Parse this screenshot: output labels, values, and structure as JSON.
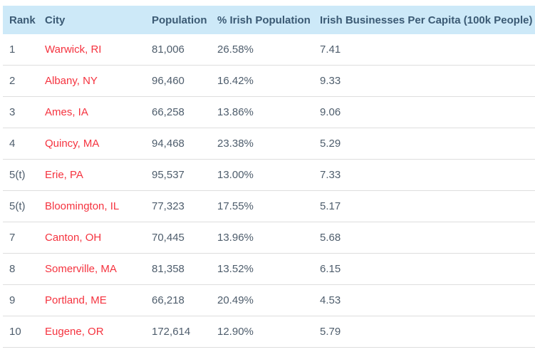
{
  "colors": {
    "header_bg": "#cde9f8",
    "header_text": "#3b5a74",
    "body_text": "#4e5d6c",
    "city_link": "#f5333f",
    "row_border": "#dedede"
  },
  "table": {
    "columns": [
      {
        "key": "rank",
        "label": "Rank"
      },
      {
        "key": "city",
        "label": "City"
      },
      {
        "key": "population",
        "label": "Population"
      },
      {
        "key": "pct_irish",
        "label": "% Irish Population"
      },
      {
        "key": "businesses_per_capita",
        "label": "Irish Businesses Per Capita (100k People)"
      }
    ],
    "rows": [
      {
        "rank": "1",
        "city": "Warwick, RI",
        "population": "81,006",
        "pct_irish": "26.58%",
        "businesses_per_capita": "7.41"
      },
      {
        "rank": "2",
        "city": "Albany, NY",
        "population": "96,460",
        "pct_irish": "16.42%",
        "businesses_per_capita": "9.33"
      },
      {
        "rank": "3",
        "city": "Ames, IA",
        "population": "66,258",
        "pct_irish": "13.86%",
        "businesses_per_capita": "9.06"
      },
      {
        "rank": "4",
        "city": "Quincy, MA",
        "population": "94,468",
        "pct_irish": "23.38%",
        "businesses_per_capita": "5.29"
      },
      {
        "rank": "5(t)",
        "city": "Erie, PA",
        "population": "95,537",
        "pct_irish": "13.00%",
        "businesses_per_capita": "7.33"
      },
      {
        "rank": "5(t)",
        "city": "Bloomington, IL",
        "population": "77,323",
        "pct_irish": "17.55%",
        "businesses_per_capita": "5.17"
      },
      {
        "rank": "7",
        "city": "Canton, OH",
        "population": "70,445",
        "pct_irish": "13.96%",
        "businesses_per_capita": "5.68"
      },
      {
        "rank": "8",
        "city": "Somerville, MA",
        "population": "81,358",
        "pct_irish": "13.52%",
        "businesses_per_capita": "6.15"
      },
      {
        "rank": "9",
        "city": "Portland, ME",
        "population": "66,218",
        "pct_irish": "20.49%",
        "businesses_per_capita": "4.53"
      },
      {
        "rank": "10",
        "city": "Eugene, OR",
        "population": "172,614",
        "pct_irish": "12.90%",
        "businesses_per_capita": "5.79"
      }
    ]
  },
  "chart_data": {
    "type": "table",
    "title": "",
    "columns": [
      "Rank",
      "City",
      "Population",
      "% Irish Population",
      "Irish Businesses Per Capita (100k People)"
    ],
    "rows": [
      [
        "1",
        "Warwick, RI",
        81006,
        26.58,
        7.41
      ],
      [
        "2",
        "Albany, NY",
        96460,
        16.42,
        9.33
      ],
      [
        "3",
        "Ames, IA",
        66258,
        13.86,
        9.06
      ],
      [
        "4",
        "Quincy, MA",
        94468,
        23.38,
        5.29
      ],
      [
        "5(t)",
        "Erie, PA",
        95537,
        13.0,
        7.33
      ],
      [
        "5(t)",
        "Bloomington, IL",
        77323,
        17.55,
        5.17
      ],
      [
        "7",
        "Canton, OH",
        70445,
        13.96,
        5.68
      ],
      [
        "8",
        "Somerville, MA",
        81358,
        13.52,
        6.15
      ],
      [
        "9",
        "Portland, ME",
        66218,
        20.49,
        4.53
      ],
      [
        "10",
        "Eugene, OR",
        172614,
        12.9,
        5.79
      ]
    ]
  }
}
